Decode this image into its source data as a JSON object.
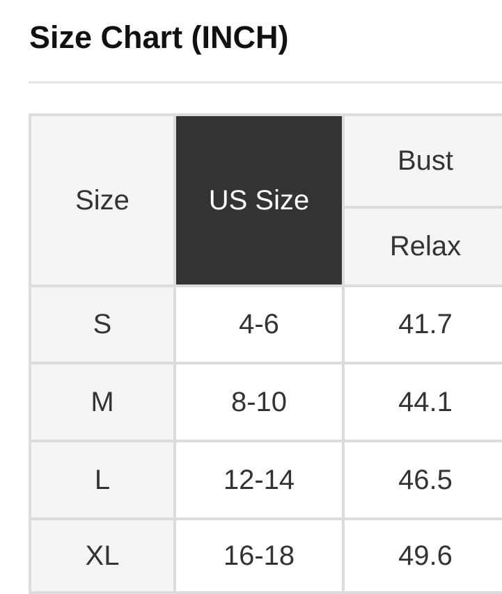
{
  "title": "Size Chart (INCH)",
  "table": {
    "headers": {
      "size": "Size",
      "us_size": "US Size",
      "bust": "Bust",
      "relax": "Relax"
    },
    "rows": [
      {
        "size": "S",
        "us_size": "4-6",
        "bust_relax": "41.7"
      },
      {
        "size": "M",
        "us_size": "8-10",
        "bust_relax": "44.1"
      },
      {
        "size": "L",
        "us_size": "12-14",
        "bust_relax": "46.5"
      },
      {
        "size": "XL",
        "us_size": "16-18",
        "bust_relax": "49.6"
      }
    ],
    "colors": {
      "header_highlight": "#333333",
      "header_bg": "#f4f4f4",
      "border": "#dcdcdc"
    }
  }
}
